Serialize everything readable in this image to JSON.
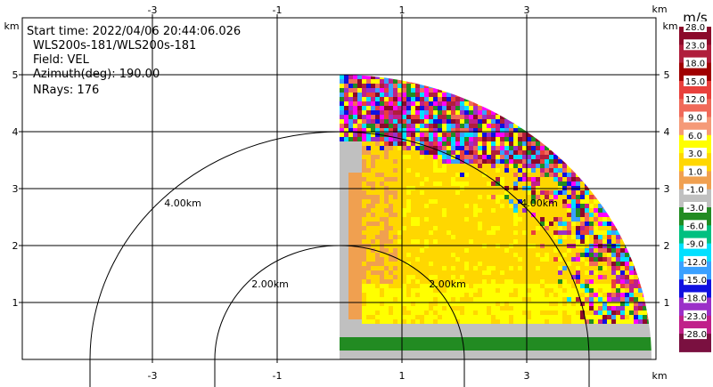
{
  "info": {
    "start_time": "Start time: 2022/04/06 20:44:06.026",
    "instrument": "WLS200s-181/WLS200s-181",
    "field": "Field: VEL",
    "azimuth": "Azimuth(deg): 190.00",
    "nrays": "NRays: 176"
  },
  "chart_data": {
    "type": "heatmap",
    "subtype": "rhi-ppi-sector",
    "x_ticks": [
      "-3",
      "-1",
      "1",
      "3"
    ],
    "y_ticks": [
      "1",
      "2",
      "3",
      "4",
      "5"
    ],
    "x_tick_values": [
      -3,
      -1,
      1,
      3
    ],
    "y_tick_values": [
      1,
      2,
      3,
      4,
      5
    ],
    "xlim": [
      -5.0,
      5.0
    ],
    "ylim": [
      0.0,
      5.0
    ],
    "x_unit": "km",
    "y_unit": "km",
    "range_rings": [
      {
        "radius_km": 2.0,
        "label": "2.00km"
      },
      {
        "radius_km": 4.0,
        "label": "4.00km"
      }
    ],
    "ring_label_2": "2.00km",
    "ring_label_2b": "2.00km",
    "ring_label_4": "4.00km",
    "ring_label_4b": "4.00km",
    "colorbar": {
      "unit": "m/s",
      "labels": [
        "28.0",
        "23.0",
        "18.0",
        "15.0",
        "12.0",
        "9.0",
        "6.0",
        "3.0",
        "1.0",
        "-1.0",
        "-3.0",
        "-6.0",
        "-9.0",
        "-12.0",
        "-15.0",
        "-18.0",
        "-23.0",
        "-28.0"
      ],
      "colors": [
        "#8b0a2a",
        "#b01e3c",
        "#a00000",
        "#e8403c",
        "#f06a5a",
        "#f59a78",
        "#ffff00",
        "#ffd700",
        "#f0a050",
        "#c0c0c0",
        "#228b22",
        "#00c080",
        "#00e0ff",
        "#3aa0ff",
        "#1010e0",
        "#9b30c8",
        "#c0208a",
        "#7a1040"
      ]
    }
  }
}
